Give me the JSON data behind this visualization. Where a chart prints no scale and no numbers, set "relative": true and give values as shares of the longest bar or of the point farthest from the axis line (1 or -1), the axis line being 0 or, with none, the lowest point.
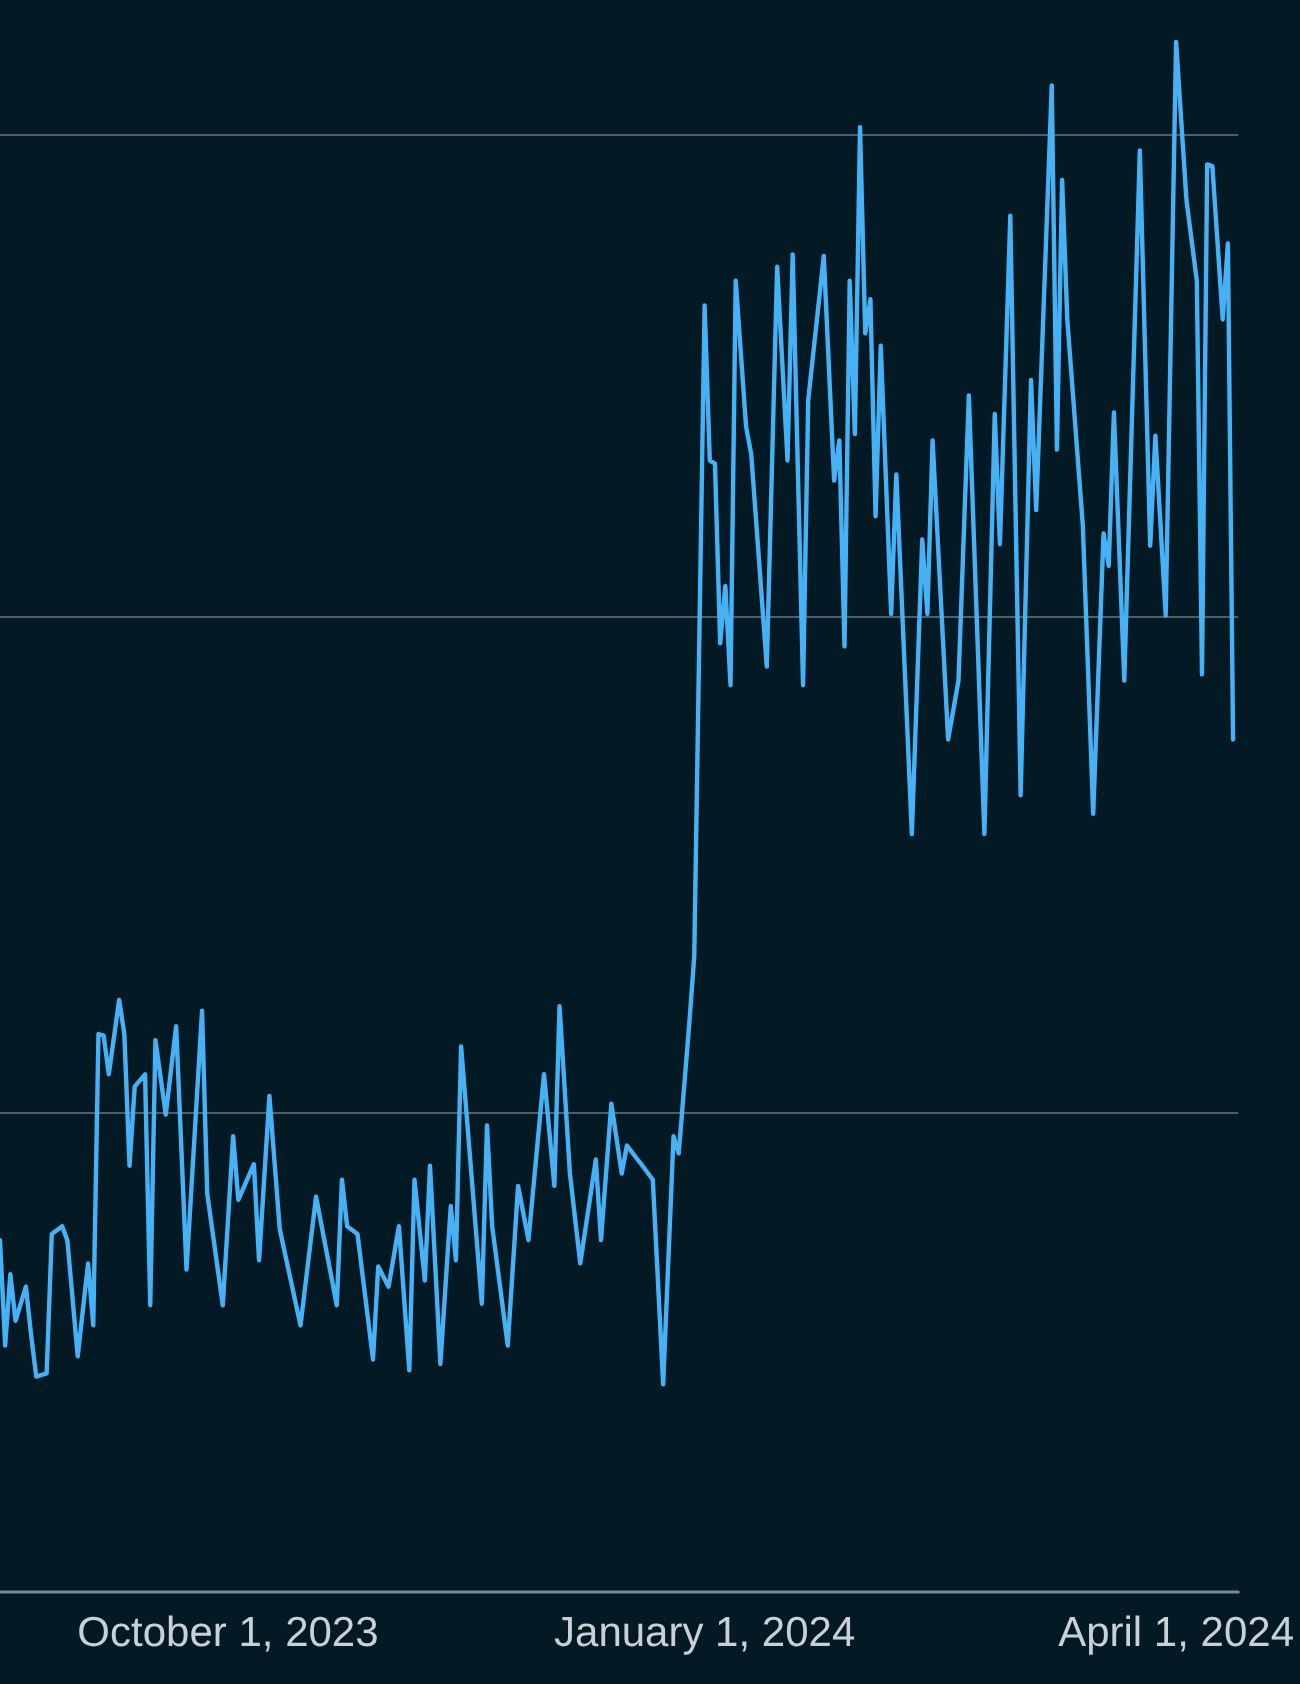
{
  "chart_data": {
    "type": "line",
    "relative": true,
    "x": [
      "2023-08-18",
      "2023-08-19",
      "2023-08-20",
      "2023-08-21",
      "2023-08-23",
      "2023-08-24",
      "2023-08-25",
      "2023-08-27",
      "2023-08-28",
      "2023-08-30",
      "2023-08-31",
      "2023-09-02",
      "2023-09-04",
      "2023-09-05",
      "2023-09-06",
      "2023-09-07",
      "2023-09-08",
      "2023-09-10",
      "2023-09-11",
      "2023-09-12",
      "2023-09-13",
      "2023-09-15",
      "2023-09-16",
      "2023-09-17",
      "2023-09-19",
      "2023-09-21",
      "2023-09-23",
      "2023-09-26",
      "2023-09-27",
      "2023-09-30",
      "2023-10-02",
      "2023-10-03",
      "2023-10-06",
      "2023-10-07",
      "2023-10-09",
      "2023-10-11",
      "2023-10-15",
      "2023-10-18",
      "2023-10-22",
      "2023-10-23",
      "2023-10-24",
      "2023-10-26",
      "2023-10-29",
      "2023-10-30",
      "2023-11-01",
      "2023-11-03",
      "2023-11-05",
      "2023-11-06",
      "2023-11-08",
      "2023-11-09",
      "2023-11-11",
      "2023-11-13",
      "2023-11-14",
      "2023-11-15",
      "2023-11-19",
      "2023-11-20",
      "2023-11-21",
      "2023-11-24",
      "2023-11-26",
      "2023-11-28",
      "2023-12-01",
      "2023-12-03",
      "2023-12-04",
      "2023-12-06",
      "2023-12-08",
      "2023-12-11",
      "2023-12-12",
      "2023-12-14",
      "2023-12-16",
      "2023-12-17",
      "2023-12-20",
      "2023-12-22",
      "2023-12-24",
      "2023-12-26",
      "2023-12-27",
      "2023-12-29",
      "2023-12-30",
      "2024-01-01",
      "2024-01-02",
      "2024-01-03",
      "2024-01-04",
      "2024-01-05",
      "2024-01-06",
      "2024-01-07",
      "2024-01-09",
      "2024-01-10",
      "2024-01-13",
      "2024-01-15",
      "2024-01-17",
      "2024-01-18",
      "2024-01-20",
      "2024-01-21",
      "2024-01-24",
      "2024-01-26",
      "2024-01-27",
      "2024-01-28",
      "2024-01-29",
      "2024-01-30",
      "2024-01-31",
      "2024-02-01",
      "2024-02-02",
      "2024-02-03",
      "2024-02-04",
      "2024-02-06",
      "2024-02-07",
      "2024-02-10",
      "2024-02-12",
      "2024-02-13",
      "2024-02-14",
      "2024-02-17",
      "2024-02-19",
      "2024-02-21",
      "2024-02-24",
      "2024-02-26",
      "2024-02-27",
      "2024-02-29",
      "2024-03-02",
      "2024-03-04",
      "2024-03-05",
      "2024-03-08",
      "2024-03-09",
      "2024-03-10",
      "2024-03-11",
      "2024-03-14",
      "2024-03-16",
      "2024-03-18",
      "2024-03-19",
      "2024-03-20",
      "2024-03-22",
      "2024-03-25",
      "2024-03-27",
      "2024-03-28",
      "2024-03-30",
      "2024-04-01",
      "2024-04-03",
      "2024-04-05",
      "2024-04-06",
      "2024-04-07",
      "2024-04-08",
      "2024-04-10",
      "2024-04-11",
      "2024-04-12"
    ],
    "values": [
      0.227,
      0.159,
      0.205,
      0.175,
      0.197,
      0.166,
      0.139,
      0.141,
      0.231,
      0.236,
      0.227,
      0.152,
      0.212,
      0.172,
      0.36,
      0.359,
      0.334,
      0.382,
      0.36,
      0.275,
      0.326,
      0.334,
      0.185,
      0.356,
      0.308,
      0.365,
      0.208,
      0.375,
      0.257,
      0.185,
      0.294,
      0.253,
      0.276,
      0.214,
      0.32,
      0.234,
      0.172,
      0.255,
      0.185,
      0.266,
      0.236,
      0.231,
      0.15,
      0.21,
      0.197,
      0.236,
      0.143,
      0.266,
      0.201,
      0.275,
      0.147,
      0.249,
      0.214,
      0.352,
      0.186,
      0.301,
      0.236,
      0.159,
      0.262,
      0.227,
      0.334,
      0.262,
      0.378,
      0.27,
      0.212,
      0.279,
      0.227,
      0.315,
      0.27,
      0.288,
      0.275,
      0.266,
      0.134,
      0.294,
      0.283,
      0.365,
      0.41,
      0.83,
      0.73,
      0.728,
      0.612,
      0.649,
      0.585,
      0.846,
      0.752,
      0.734,
      0.597,
      0.855,
      0.73,
      0.863,
      0.585,
      0.769,
      0.862,
      0.717,
      0.743,
      0.61,
      0.846,
      0.747,
      0.945,
      0.812,
      0.834,
      0.694,
      0.804,
      0.631,
      0.721,
      0.489,
      0.679,
      0.631,
      0.743,
      0.55,
      0.588,
      0.772,
      0.489,
      0.76,
      0.676,
      0.888,
      0.514,
      0.782,
      0.698,
      0.972,
      0.737,
      0.911,
      0.821,
      0.688,
      0.502,
      0.683,
      0.662,
      0.761,
      0.588,
      0.93,
      0.675,
      0.746,
      0.63,
      1,
      0.898,
      0.846,
      0.592,
      0.921,
      0.92,
      0.821,
      0.87,
      0.55
    ],
    "color": "#46b2f5",
    "xlim": [
      "2023-08-18",
      "2024-04-13"
    ],
    "xticks": [
      {
        "value": "2023-10-01",
        "label": "October 1, 2023"
      },
      {
        "value": "2024-01-01",
        "label": "January 1, 2024"
      },
      {
        "value": "2024-04-01",
        "label": "April 1, 2024"
      }
    ],
    "ref_lines": [
      {
        "axis": "y",
        "value": 0.31
      },
      {
        "axis": "y",
        "value": 0.627
      },
      {
        "axis": "y",
        "value": 0.941
      }
    ]
  }
}
